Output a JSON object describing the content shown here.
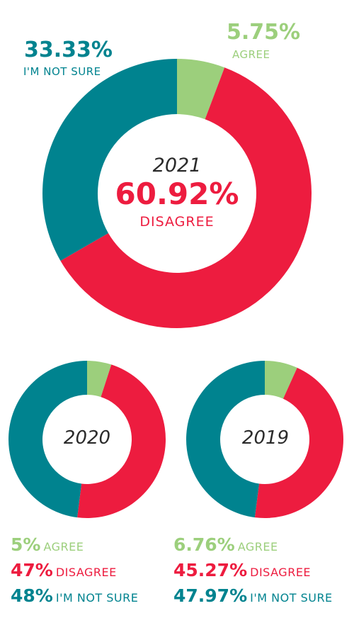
{
  "chart_data": [
    {
      "type": "pie",
      "year": "2021",
      "categories": [
        "AGREE",
        "DISAGREE",
        "I'M NOT SURE"
      ],
      "values": [
        5.75,
        60.92,
        33.33
      ],
      "labels": {
        "agree_value": "5.75%",
        "agree_text": "AGREE",
        "disagree_value": "60.92%",
        "disagree_text": "DISAGREE",
        "notsure_value": "33.33%",
        "notsure_text": "I'M NOT SURE"
      },
      "colors": [
        "#9ccf7c",
        "#ed1c3f",
        "#00838f"
      ]
    },
    {
      "type": "pie",
      "year": "2020",
      "categories": [
        "AGREE",
        "DISAGREE",
        "I'M NOT SURE"
      ],
      "values": [
        5,
        47,
        48
      ],
      "labels": {
        "agree_value": "5%",
        "agree_text": "AGREE",
        "disagree_value": "47%",
        "disagree_text": "DISAGREE",
        "notsure_value": "48%",
        "notsure_text": "I'M NOT SURE"
      },
      "colors": [
        "#9ccf7c",
        "#ed1c3f",
        "#00838f"
      ]
    },
    {
      "type": "pie",
      "year": "2019",
      "categories": [
        "AGREE",
        "DISAGREE",
        "I'M NOT SURE"
      ],
      "values": [
        6.76,
        45.27,
        47.97
      ],
      "labels": {
        "agree_value": "6.76%",
        "agree_text": "AGREE",
        "disagree_value": "45.27%",
        "disagree_text": "DISAGREE",
        "notsure_value": "47.97%",
        "notsure_text": "I'M NOT SURE"
      },
      "colors": [
        "#9ccf7c",
        "#ed1c3f",
        "#00838f"
      ]
    }
  ]
}
